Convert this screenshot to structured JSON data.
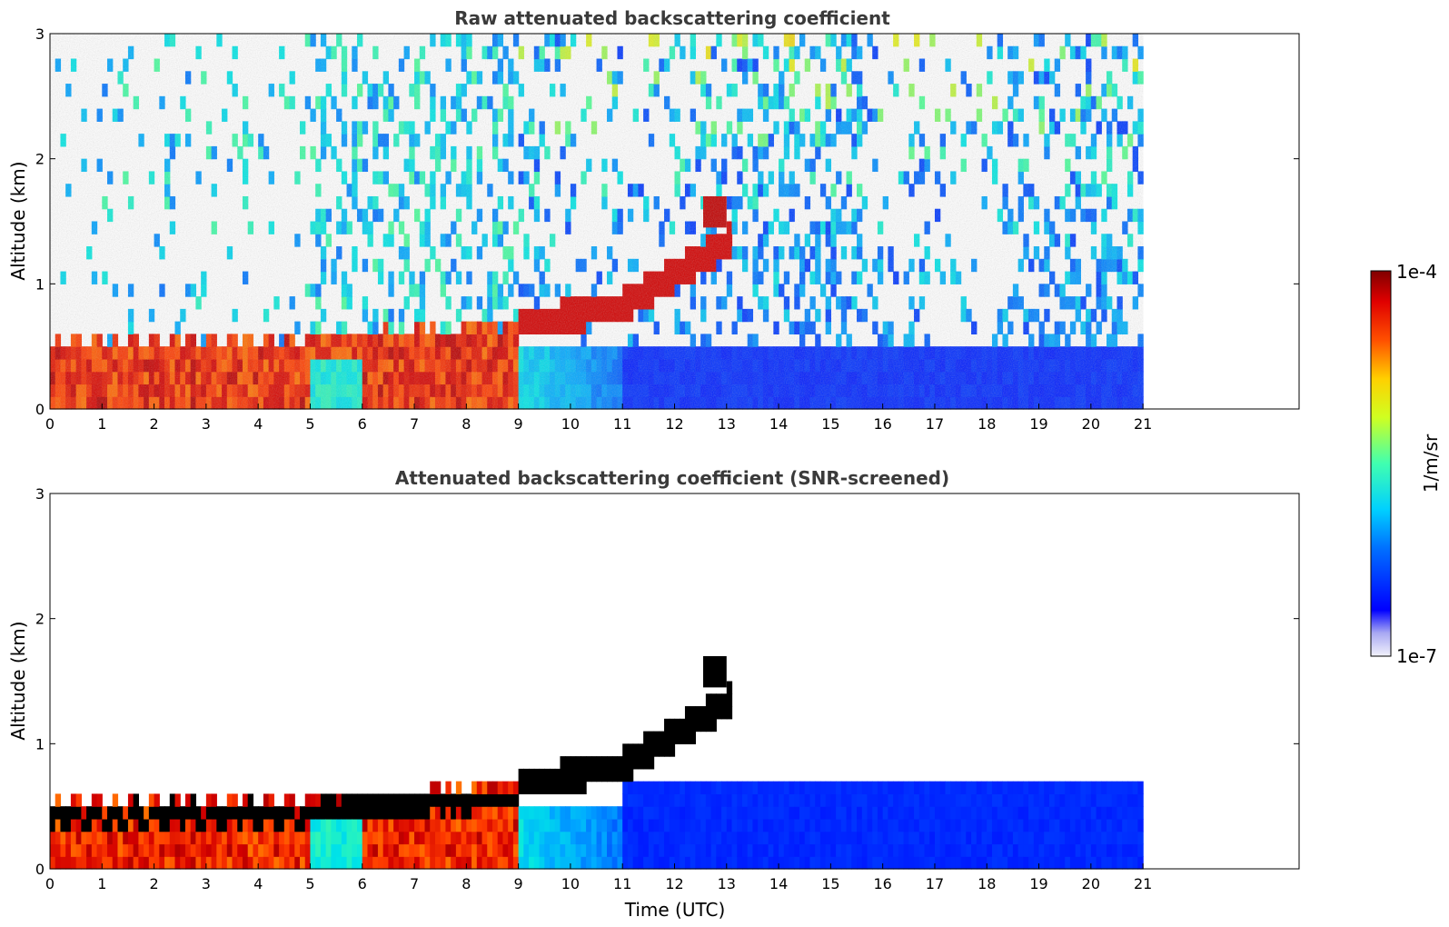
{
  "chart_data": [
    {
      "type": "heatmap",
      "title": "Raw attenuated backscattering coefficient",
      "xlabel": "",
      "ylabel": "Altitude (km)",
      "xlim": [
        0,
        24
      ],
      "ylim": [
        0,
        3
      ],
      "x_ticks": [
        "0",
        "1",
        "2",
        "3",
        "4",
        "5",
        "6",
        "7",
        "8",
        "9",
        "10",
        "11",
        "12",
        "13",
        "14",
        "15",
        "16",
        "17",
        "18",
        "19",
        "20",
        "21"
      ],
      "y_ticks": [
        "0",
        "1",
        "2",
        "3"
      ],
      "data_extent_x": [
        0,
        21
      ],
      "features": [
        {
          "label": "boundary layer",
          "from_x": 0,
          "to_x": 5,
          "top_km": 0.55,
          "intensity": "very high"
        },
        {
          "label": "layer",
          "from_x": 5,
          "to_x": 9,
          "top_km": 0.6,
          "intensity": "high"
        },
        {
          "label": "rising layer top",
          "points": [
            [
              9,
              0.65
            ],
            [
              10,
              0.68
            ],
            [
              11,
              0.78
            ],
            [
              12,
              1.0
            ],
            [
              13,
              1.25
            ]
          ]
        },
        {
          "label": "elevated layer",
          "from_x": 12.5,
          "to_x": 13,
          "altitude_km": 1.55
        }
      ]
    },
    {
      "type": "heatmap",
      "title": "Attenuated backscattering coefficient (SNR-screened)",
      "xlabel": "Time (UTC)",
      "ylabel": "Altitude (km)",
      "xlim": [
        0,
        24
      ],
      "ylim": [
        0,
        3
      ],
      "x_ticks": [
        "0",
        "1",
        "2",
        "3",
        "4",
        "5",
        "6",
        "7",
        "8",
        "9",
        "10",
        "11",
        "12",
        "13",
        "14",
        "15",
        "16",
        "17",
        "18",
        "19",
        "20",
        "21"
      ],
      "y_ticks": [
        "0",
        "1",
        "2",
        "3"
      ],
      "data_extent_x": [
        0,
        21
      ],
      "features": [
        {
          "label": "boundary layer",
          "from_x": 0,
          "to_x": 5,
          "top_km": 0.55,
          "intensity": "very high"
        },
        {
          "label": "rising layer top",
          "points": [
            [
              9,
              0.65
            ],
            [
              10,
              0.7
            ],
            [
              11,
              0.8
            ],
            [
              12,
              1.0
            ],
            [
              13,
              1.3
            ]
          ]
        },
        {
          "label": "elevated layer",
          "from_x": 12.5,
          "to_x": 13,
          "altitude_km": 1.6
        },
        {
          "label": "low backscatter region",
          "from_x": 11,
          "to_x": 21,
          "top_km": 0.6
        }
      ]
    }
  ],
  "colorbar": {
    "max_label": "1e-4",
    "min_label": "1e-7",
    "unit": "1/m/sr",
    "colormap": "jet"
  }
}
